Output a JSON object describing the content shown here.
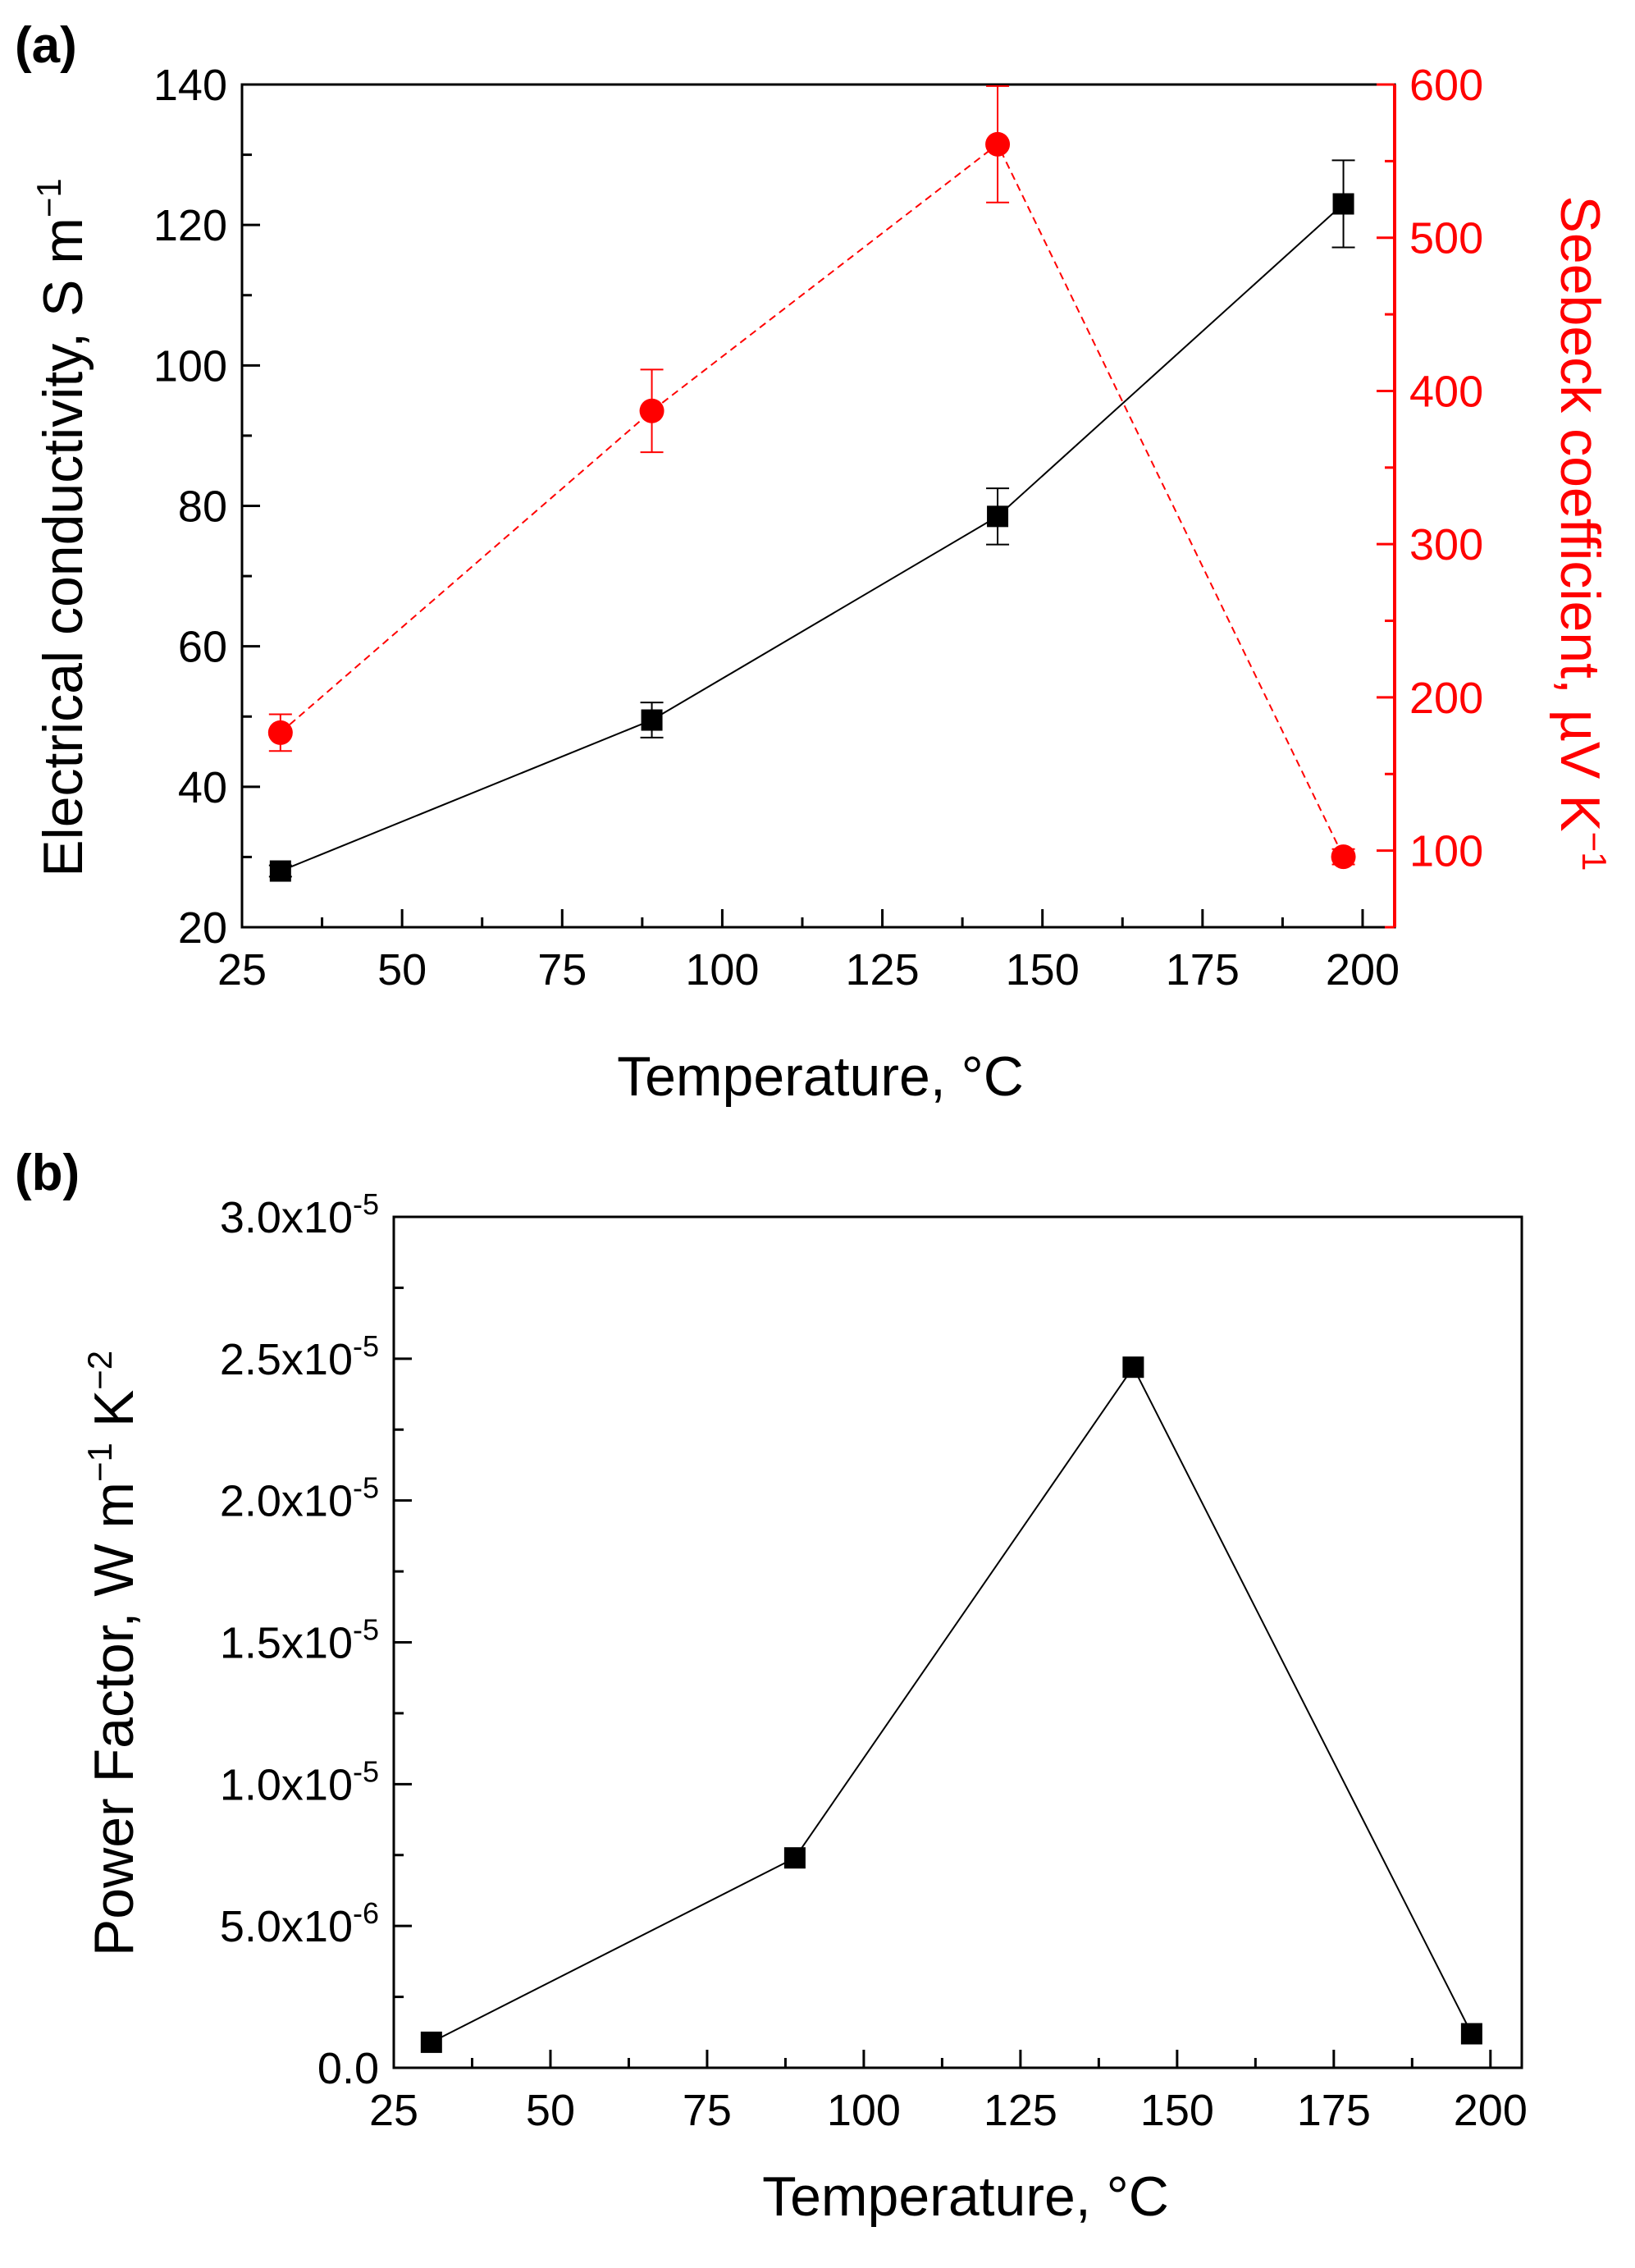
{
  "chart_data": [
    {
      "panel_label": "(a)",
      "type": "line",
      "x": [
        31,
        89,
        143,
        197
      ],
      "xlabel": "Temperature, °C",
      "xlim": [
        25,
        205
      ],
      "xticks": [
        "25",
        "50",
        "75",
        "100",
        "125",
        "150",
        "175",
        "200"
      ],
      "xtick_values": [
        25,
        50,
        75,
        100,
        125,
        150,
        175,
        200
      ],
      "grid": false,
      "series": [
        {
          "name": "Electrical conductivity",
          "axis": "left",
          "color": "#000000",
          "marker": "square",
          "line_style": "solid",
          "values": [
            28,
            49.5,
            78.5,
            123
          ],
          "errors": [
            0.8,
            2.5,
            4,
            6.2
          ]
        },
        {
          "name": "Seebeck coefficient",
          "axis": "right",
          "color": "#ff0000",
          "marker": "circle",
          "line_style": "dashed",
          "values": [
            177,
            387,
            561,
            96
          ],
          "errors": [
            12,
            27,
            38,
            5
          ]
        }
      ],
      "ylabel_left": {
        "main": "Electrical conductivity, S m",
        "sup": "−1"
      },
      "ylim_left": [
        20,
        140
      ],
      "yticks_left": [
        "20",
        "40",
        "60",
        "80",
        "100",
        "120",
        "140"
      ],
      "ytick_values_left": [
        20,
        40,
        60,
        80,
        100,
        120,
        140
      ],
      "ylabel_right": {
        "main": "Seebeck coefficient, µV K",
        "sup": "−1"
      },
      "ylim_right": [
        50,
        600
      ],
      "yticks_right": [
        "100",
        "200",
        "300",
        "400",
        "500",
        "600"
      ],
      "ytick_values_right": [
        100,
        200,
        300,
        400,
        500,
        600
      ]
    },
    {
      "panel_label": "(b)",
      "type": "line",
      "x": [
        31,
        89,
        143,
        197
      ],
      "xlabel": "Temperature, °C",
      "xlim": [
        25,
        205
      ],
      "xticks": [
        "25",
        "50",
        "75",
        "100",
        "125",
        "150",
        "175",
        "200"
      ],
      "xtick_values": [
        25,
        50,
        75,
        100,
        125,
        150,
        175,
        200
      ],
      "grid": false,
      "series": [
        {
          "name": "Power Factor",
          "axis": "left",
          "color": "#000000",
          "marker": "square",
          "line_style": "solid",
          "values": [
            9e-07,
            7.4e-06,
            2.47e-05,
            1.2e-06
          ]
        }
      ],
      "ylabel_left": {
        "p1": "Power Factor, W m",
        "s1": "−1",
        "p2": " K",
        "s2": "−2"
      },
      "ylim_left": [
        0,
        3e-05
      ],
      "ytick_values_left": [
        0,
        5e-06,
        1e-05,
        1.5e-05,
        2e-05,
        2.5e-05,
        3e-05
      ],
      "yticks_left": [
        {
          "base": "0.0",
          "exp": ""
        },
        {
          "base": "5.0x10",
          "exp": "-6"
        },
        {
          "base": "1.0x10",
          "exp": "-5"
        },
        {
          "base": "1.5x10",
          "exp": "-5"
        },
        {
          "base": "2.0x10",
          "exp": "-5"
        },
        {
          "base": "2.5x10",
          "exp": "-5"
        },
        {
          "base": "3.0x10",
          "exp": "-5"
        }
      ]
    }
  ]
}
